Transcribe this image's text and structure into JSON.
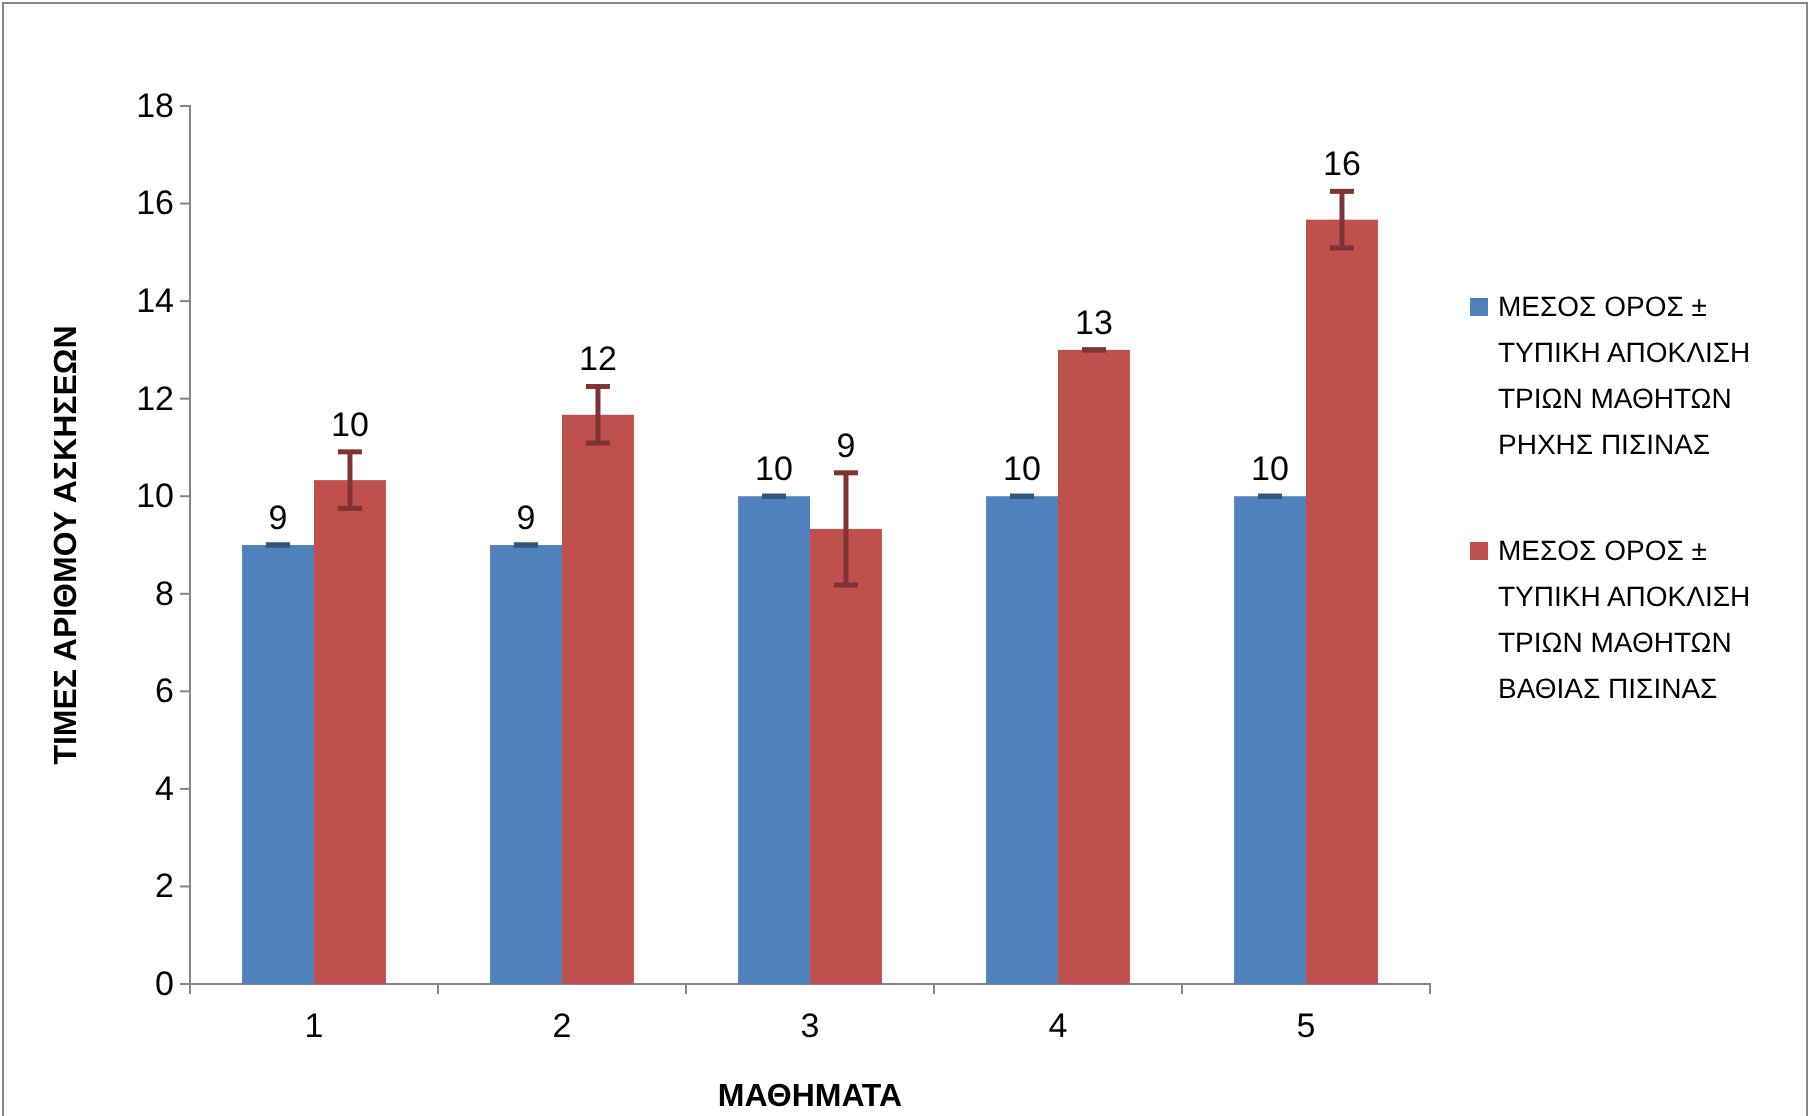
{
  "chart_data": {
    "type": "bar",
    "xlabel": "ΜΑΘΗΜΑΤΑ",
    "ylabel": "ΤΙΜΕΣ ΑΡΙΘΜΟΥ ΑΣΚΗΣΕΩΝ",
    "categories": [
      "1",
      "2",
      "3",
      "4",
      "5"
    ],
    "series": [
      {
        "name": "ΜΕΣΟΣ ΟΡΟΣ ± ΤΥΠΙΚΗ ΑΠΟΚΛΙΣΗ ΤΡΙΩΝ ΜΑΘΗΤΩΝ ΡΗΧΗΣ ΠΙΣΙΝΑΣ",
        "color": "#4f81bd",
        "values": [
          9,
          9,
          10,
          10,
          10
        ],
        "errors": [
          0,
          0,
          0,
          0,
          0
        ],
        "value_labels": [
          "9",
          "9",
          "10",
          "10",
          "10"
        ]
      },
      {
        "name": "ΜΕΣΟΣ ΟΡΟΣ ± ΤΥΠΙΚΗ ΑΠΟΚΛΙΣΗ ΤΡΙΩΝ ΜΑΘΗΤΩΝ ΒΑΘΙΑΣ ΠΙΣΙΝΑΣ",
        "color": "#c0504d",
        "values": [
          10.33,
          11.67,
          9.33,
          13,
          15.67
        ],
        "errors": [
          0.58,
          0.58,
          1.15,
          0,
          0.58
        ],
        "value_labels": [
          "10",
          "12",
          "9",
          "13",
          "16"
        ]
      }
    ],
    "ylim": [
      0,
      18
    ],
    "yticks": [
      0,
      2,
      4,
      6,
      8,
      10,
      12,
      14,
      16,
      18
    ],
    "grid": false,
    "legend": "right"
  }
}
